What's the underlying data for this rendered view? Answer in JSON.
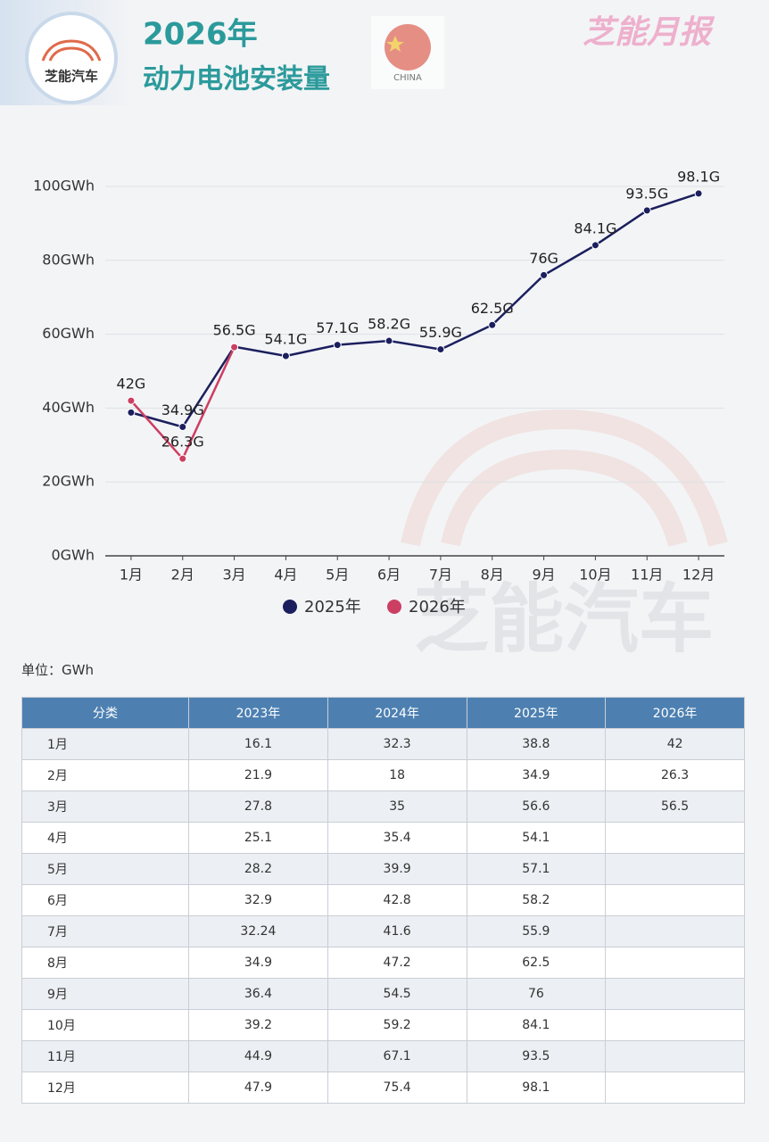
{
  "header": {
    "logo_text": "芝能汽车",
    "title": "2026年",
    "subtitle": "动力电池安装量",
    "flag_label": "CHINA",
    "brand": "芝能月报",
    "watermark": "芝能汽车"
  },
  "chart_data": {
    "type": "line",
    "categories": [
      "1月",
      "2月",
      "3月",
      "4月",
      "5月",
      "6月",
      "7月",
      "8月",
      "9月",
      "10月",
      "11月",
      "12月"
    ],
    "series": [
      {
        "name": "2025年",
        "color": "#1b1f5e",
        "values": [
          38.8,
          34.9,
          56.6,
          54.1,
          57.1,
          58.2,
          55.9,
          62.5,
          76,
          84.1,
          93.5,
          98.1
        ],
        "value_labels": [
          null,
          "34.9G",
          null,
          "54.1G",
          "57.1G",
          "58.2G",
          "55.9G",
          "62.5G",
          "76G",
          "84.1G",
          "93.5G",
          "98.1G"
        ]
      },
      {
        "name": "2026年",
        "color": "#cc3f63",
        "values": [
          42,
          26.3,
          56.5,
          null,
          null,
          null,
          null,
          null,
          null,
          null,
          null,
          null
        ],
        "value_labels": [
          "42G",
          "26.3G",
          "56.5G",
          null,
          null,
          null,
          null,
          null,
          null,
          null,
          null,
          null
        ]
      }
    ],
    "ylim": [
      0,
      100
    ],
    "yticks": [
      {
        "value": 0,
        "label": "0GWh"
      },
      {
        "value": 20,
        "label": "20GWh"
      },
      {
        "value": 40,
        "label": "40GWh"
      },
      {
        "value": 60,
        "label": "60GWh"
      },
      {
        "value": 80,
        "label": "80GWh"
      },
      {
        "value": 100,
        "label": "100GWh"
      }
    ],
    "grid": true,
    "legend": "bottom"
  },
  "unit": "单位：GWh",
  "table": {
    "header": [
      "分类",
      "2023年",
      "2024年",
      "2025年",
      "2026年"
    ],
    "rows": [
      [
        "1月",
        16.1,
        32.3,
        38.8,
        42
      ],
      [
        "2月",
        21.9,
        18,
        34.9,
        26.3
      ],
      [
        "3月",
        27.8,
        35,
        56.6,
        56.5
      ],
      [
        "4月",
        25.1,
        35.4,
        54.1,
        null
      ],
      [
        "5月",
        28.2,
        39.9,
        57.1,
        null
      ],
      [
        "6月",
        32.9,
        42.8,
        58.2,
        null
      ],
      [
        "7月",
        32.24,
        41.6,
        55.9,
        null
      ],
      [
        "8月",
        34.9,
        47.2,
        62.5,
        null
      ],
      [
        "9月",
        36.4,
        54.5,
        76,
        null
      ],
      [
        "10月",
        39.2,
        59.2,
        84.1,
        null
      ],
      [
        "11月",
        44.9,
        67.1,
        93.5,
        null
      ],
      [
        "12月",
        47.9,
        75.4,
        98.1,
        null
      ]
    ]
  }
}
